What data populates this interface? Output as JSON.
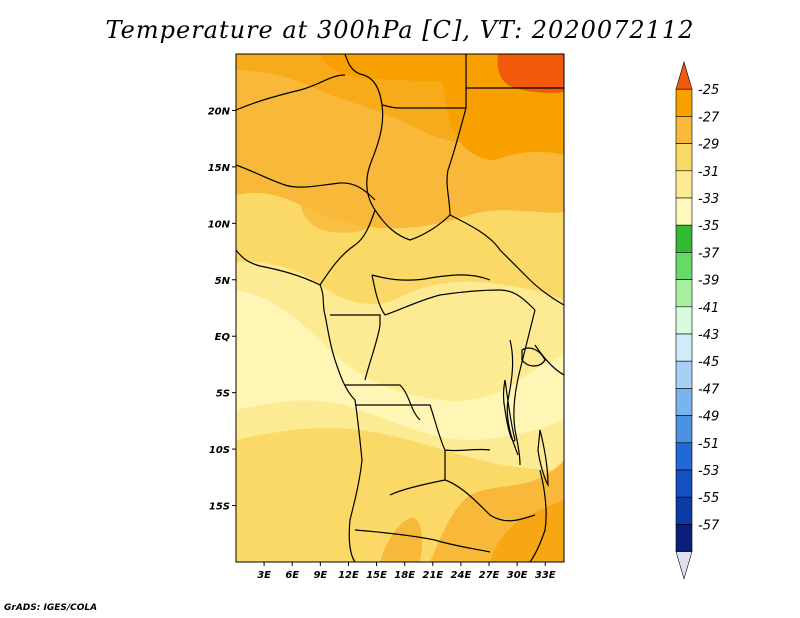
{
  "title": "Temperature at 300hPa [C], VT: 2020072112",
  "credit": "GrADS: IGES/COLA",
  "map": {
    "lon_range": [
      0,
      35
    ],
    "lat_range": [
      -20,
      25
    ],
    "x_ticks": [
      "3E",
      "6E",
      "9E",
      "12E",
      "15E",
      "18E",
      "21E",
      "24E",
      "27E",
      "30E",
      "33E"
    ],
    "x_tick_values": [
      3,
      6,
      9,
      12,
      15,
      18,
      21,
      24,
      27,
      30,
      33
    ],
    "y_ticks": [
      "20N",
      "15N",
      "10N",
      "5N",
      "EQ",
      "5S",
      "10S",
      "15S"
    ],
    "y_tick_values": [
      20,
      15,
      10,
      5,
      0,
      -5,
      -10,
      -15
    ]
  },
  "colorbar": {
    "labels": [
      "-25",
      "-27",
      "-29",
      "-31",
      "-33",
      "-35",
      "-37",
      "-39",
      "-41",
      "-43",
      "-45",
      "-47",
      "-49",
      "-51",
      "-53",
      "-55",
      "-57"
    ],
    "colors": [
      "#f05a0a",
      "#f7a000",
      "#f8b83a",
      "#fbd966",
      "#fdeb94",
      "#fff9c0",
      "#33bb33",
      "#66d966",
      "#a8f0a0",
      "#d8fce0",
      "#d0ecfa",
      "#a6d0f6",
      "#7ab4ee",
      "#4b91e2",
      "#2268d8",
      "#1450c0",
      "#0f3ba8",
      "#0a1f7a",
      "#e0e0f0"
    ]
  }
}
